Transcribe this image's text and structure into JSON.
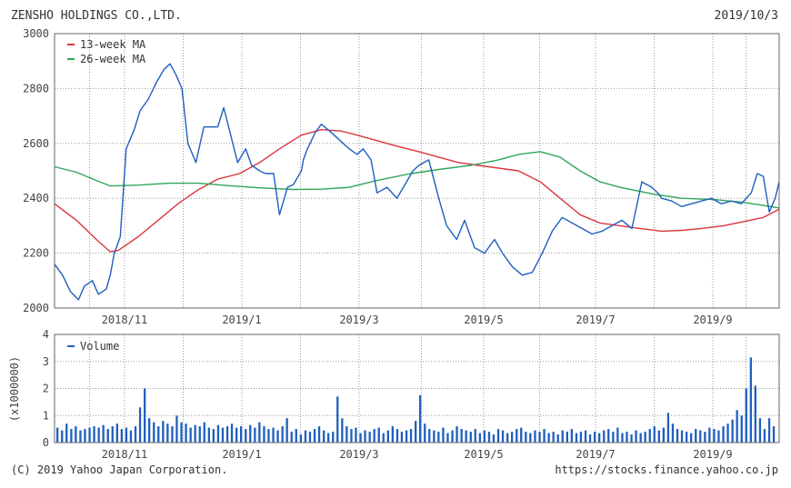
{
  "header": {
    "company": "ZENSHO HOLDINGS CO.,LTD.",
    "date": "2019/10/3"
  },
  "footer": {
    "copyright": "(C) 2019 Yahoo Japan Corporation.",
    "url": "https://stocks.finance.yahoo.co.jp"
  },
  "colors": {
    "price": "#1f5fbf",
    "ma13": "#d9363e",
    "ma26": "#2ea65a",
    "volume": "#1f5fbf",
    "grid": "#9a9a9a",
    "frame": "#666666"
  },
  "chart_data": [
    {
      "type": "line",
      "legend_position": "top-left",
      "grid": true,
      "ylim": [
        2000,
        3000
      ],
      "y_ticks": [
        "3000",
        "2800",
        "2600",
        "2400",
        "2200",
        "2000"
      ],
      "x_ticks": [
        "2018/11",
        "2019/1",
        "2019/3",
        "2019/5",
        "2019/7",
        "2019/9"
      ],
      "series": [
        {
          "name": "13-week MA",
          "x": [
            "2018-10-04",
            "2018-10-15",
            "2018-10-25",
            "2018-11-01",
            "2018-11-05",
            "2018-11-15",
            "2018-11-25",
            "2018-12-05",
            "2018-12-15",
            "2018-12-25",
            "2019-01-05",
            "2019-01-15",
            "2019-01-25",
            "2019-02-05",
            "2019-02-15",
            "2019-02-25",
            "2019-03-05",
            "2019-03-15",
            "2019-03-25",
            "2019-04-05",
            "2019-04-15",
            "2019-04-25",
            "2019-05-05",
            "2019-05-15",
            "2019-05-25",
            "2019-06-05",
            "2019-06-15",
            "2019-06-25",
            "2019-07-05",
            "2019-07-15",
            "2019-07-25",
            "2019-08-05",
            "2019-08-15",
            "2019-08-25",
            "2019-09-05",
            "2019-09-15",
            "2019-09-25",
            "2019-10-03"
          ],
          "y": [
            2380,
            2320,
            2250,
            2205,
            2210,
            2260,
            2320,
            2380,
            2430,
            2470,
            2490,
            2530,
            2580,
            2630,
            2650,
            2645,
            2630,
            2610,
            2590,
            2570,
            2550,
            2530,
            2520,
            2510,
            2500,
            2460,
            2400,
            2340,
            2310,
            2300,
            2290,
            2280,
            2283,
            2290,
            2300,
            2315,
            2330,
            2360
          ]
        },
        {
          "name": "26-week MA",
          "x": [
            "2018-10-04",
            "2018-10-15",
            "2018-10-25",
            "2018-11-01",
            "2018-11-15",
            "2018-12-01",
            "2018-12-15",
            "2019-01-01",
            "2019-01-15",
            "2019-02-01",
            "2019-02-15",
            "2019-03-01",
            "2019-03-15",
            "2019-04-01",
            "2019-04-15",
            "2019-05-01",
            "2019-05-15",
            "2019-05-25",
            "2019-06-05",
            "2019-06-15",
            "2019-06-25",
            "2019-07-05",
            "2019-07-15",
            "2019-08-01",
            "2019-08-15",
            "2019-09-01",
            "2019-09-15",
            "2019-10-03"
          ],
          "y": [
            2515,
            2495,
            2465,
            2445,
            2448,
            2455,
            2455,
            2445,
            2438,
            2432,
            2433,
            2440,
            2465,
            2490,
            2505,
            2520,
            2540,
            2560,
            2570,
            2550,
            2500,
            2460,
            2440,
            2415,
            2400,
            2395,
            2385,
            2365
          ]
        },
        {
          "name": "",
          "x": [
            "2018-10-04",
            "2018-10-08",
            "2018-10-12",
            "2018-10-16",
            "2018-10-19",
            "2018-10-23",
            "2018-10-26",
            "2018-10-30",
            "2018-11-01",
            "2018-11-03",
            "2018-11-06",
            "2018-11-09",
            "2018-11-13",
            "2018-11-16",
            "2018-11-20",
            "2018-11-24",
            "2018-11-28",
            "2018-12-01",
            "2018-12-04",
            "2018-12-07",
            "2018-12-10",
            "2018-12-14",
            "2018-12-18",
            "2018-12-21",
            "2018-12-25",
            "2018-12-28",
            "2019-01-04",
            "2019-01-08",
            "2019-01-11",
            "2019-01-15",
            "2019-01-18",
            "2019-01-22",
            "2019-01-25",
            "2019-01-29",
            "2019-02-01",
            "2019-02-05",
            "2019-02-06",
            "2019-02-08",
            "2019-02-12",
            "2019-02-15",
            "2019-02-20",
            "2019-02-26",
            "2019-03-01",
            "2019-03-05",
            "2019-03-08",
            "2019-03-12",
            "2019-03-15",
            "2019-03-20",
            "2019-03-25",
            "2019-03-29",
            "2019-04-02",
            "2019-04-05",
            "2019-04-10",
            "2019-04-15",
            "2019-04-19",
            "2019-04-24",
            "2019-04-28",
            "2019-05-03",
            "2019-05-08",
            "2019-05-13",
            "2019-05-17",
            "2019-05-22",
            "2019-05-27",
            "2019-06-01",
            "2019-06-06",
            "2019-06-11",
            "2019-06-16",
            "2019-06-21",
            "2019-06-26",
            "2019-07-01",
            "2019-07-06",
            "2019-07-11",
            "2019-07-16",
            "2019-07-21",
            "2019-07-26",
            "2019-07-31",
            "2019-08-03",
            "2019-08-05",
            "2019-08-10",
            "2019-08-15",
            "2019-08-20",
            "2019-08-25",
            "2019-08-30",
            "2019-09-04",
            "2019-09-09",
            "2019-09-14",
            "2019-09-19",
            "2019-09-22",
            "2019-09-25",
            "2019-09-28",
            "2019-10-01",
            "2019-10-03"
          ],
          "y": [
            2160,
            2120,
            2060,
            2030,
            2080,
            2100,
            2050,
            2070,
            2120,
            2200,
            2260,
            2580,
            2650,
            2720,
            2760,
            2820,
            2870,
            2890,
            2850,
            2800,
            2600,
            2530,
            2660,
            2660,
            2660,
            2730,
            2530,
            2580,
            2520,
            2500,
            2490,
            2490,
            2340,
            2440,
            2450,
            2500,
            2540,
            2580,
            2640,
            2670,
            2640,
            2600,
            2580,
            2560,
            2580,
            2540,
            2420,
            2440,
            2400,
            2450,
            2500,
            2520,
            2540,
            2400,
            2300,
            2250,
            2320,
            2220,
            2200,
            2250,
            2200,
            2150,
            2120,
            2130,
            2200,
            2280,
            2330,
            2310,
            2290,
            2270,
            2280,
            2300,
            2320,
            2290,
            2460,
            2440,
            2420,
            2400,
            2390,
            2370,
            2380,
            2390,
            2400,
            2380,
            2390,
            2380,
            2420,
            2490,
            2480,
            2350,
            2400,
            2460
          ]
        }
      ]
    },
    {
      "type": "bar",
      "legend_position": "top-left",
      "grid": true,
      "ylim": [
        0,
        4
      ],
      "y_ticks": [
        "4",
        "3",
        "2",
        "1",
        "0"
      ],
      "x_ticks": [
        "2018/11",
        "2019/1",
        "2019/3",
        "2019/5",
        "2019/7",
        "2019/9"
      ],
      "ylabel": "(x1000000)",
      "series": [
        {
          "name": "Volume",
          "values": [
            0.55,
            0.45,
            0.7,
            0.5,
            0.6,
            0.45,
            0.5,
            0.55,
            0.6,
            0.55,
            0.65,
            0.5,
            0.6,
            0.7,
            0.5,
            0.55,
            0.45,
            0.6,
            1.3,
            2.0,
            0.9,
            0.75,
            0.6,
            0.8,
            0.7,
            0.6,
            1.0,
            0.75,
            0.7,
            0.55,
            0.65,
            0.6,
            0.75,
            0.55,
            0.5,
            0.65,
            0.55,
            0.6,
            0.7,
            0.55,
            0.6,
            0.5,
            0.65,
            0.55,
            0.75,
            0.6,
            0.5,
            0.55,
            0.45,
            0.6,
            0.9,
            0.4,
            0.5,
            0.3,
            0.45,
            0.4,
            0.5,
            0.6,
            0.45,
            0.35,
            0.4,
            1.7,
            0.9,
            0.6,
            0.5,
            0.55,
            0.35,
            0.45,
            0.4,
            0.5,
            0.55,
            0.35,
            0.45,
            0.6,
            0.5,
            0.4,
            0.45,
            0.5,
            0.8,
            1.75,
            0.7,
            0.5,
            0.45,
            0.4,
            0.55,
            0.35,
            0.45,
            0.6,
            0.5,
            0.45,
            0.4,
            0.5,
            0.35,
            0.45,
            0.4,
            0.3,
            0.5,
            0.45,
            0.35,
            0.4,
            0.5,
            0.55,
            0.4,
            0.35,
            0.45,
            0.4,
            0.5,
            0.35,
            0.4,
            0.3,
            0.45,
            0.4,
            0.5,
            0.35,
            0.4,
            0.45,
            0.3,
            0.4,
            0.35,
            0.45,
            0.5,
            0.4,
            0.55,
            0.35,
            0.4,
            0.3,
            0.45,
            0.35,
            0.4,
            0.5,
            0.6,
            0.45,
            0.55,
            1.1,
            0.7,
            0.5,
            0.45,
            0.4,
            0.35,
            0.5,
            0.45,
            0.4,
            0.55,
            0.5,
            0.45,
            0.6,
            0.7,
            0.85,
            1.2,
            1.0,
            2.0,
            3.15,
            2.1,
            0.9,
            0.5,
            0.9,
            0.6
          ]
        }
      ]
    }
  ]
}
